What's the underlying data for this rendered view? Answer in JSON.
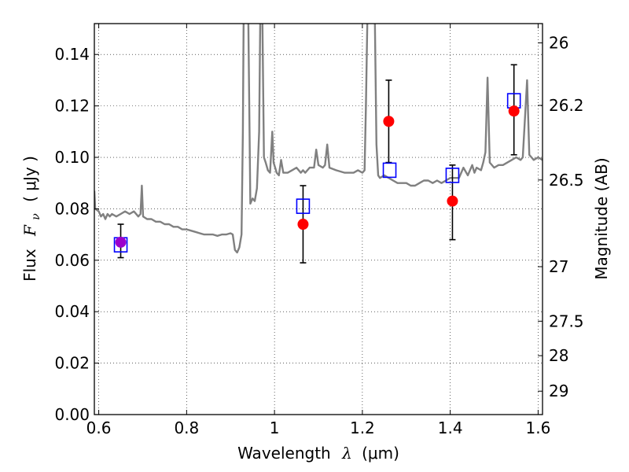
{
  "chart_data": {
    "type": "scatter",
    "title": "",
    "xlabel": "Wavelength",
    "xlabel_symbol": "λ",
    "xlabel_unit": "(μm)",
    "ylabel": "Flux",
    "ylabel_symbol": "F",
    "ylabel_subscript": "ν",
    "ylabel_unit": "( μJy )",
    "y2label": "Magnitude (AB)",
    "xlim": [
      0.59,
      1.61
    ],
    "ylim": [
      0.0,
      0.152
    ],
    "grid": true,
    "legend": "none",
    "x_ticks": [
      0.6,
      0.8,
      1.0,
      1.2,
      1.4,
      1.6
    ],
    "x_tick_labels": [
      "0.6",
      "0.8",
      "1",
      "1.2",
      "1.4",
      "1.6"
    ],
    "y_ticks": [
      0.0,
      0.02,
      0.04,
      0.06,
      0.08,
      0.1,
      0.12,
      0.14
    ],
    "y_tick_labels": [
      "0.00",
      "0.02",
      "0.04",
      "0.06",
      "0.08",
      "0.10",
      "0.12",
      "0.14"
    ],
    "mag_ticks": [
      {
        "label": "26",
        "flux": 0.1445
      },
      {
        "label": "26.2",
        "flux": 0.1202
      },
      {
        "label": "26.5",
        "flux": 0.0912
      },
      {
        "label": "27",
        "flux": 0.0575
      },
      {
        "label": "27.5",
        "flux": 0.0363
      },
      {
        "label": "28",
        "flux": 0.0229
      },
      {
        "label": "29",
        "flux": 0.0091
      }
    ],
    "series": [
      {
        "kind": "model_spectrum",
        "color": "#808080",
        "points": [
          [
            0.59,
            0.087
          ],
          [
            0.592,
            0.08
          ],
          [
            0.6,
            0.079
          ],
          [
            0.605,
            0.077
          ],
          [
            0.61,
            0.078
          ],
          [
            0.615,
            0.076
          ],
          [
            0.62,
            0.078
          ],
          [
            0.625,
            0.077
          ],
          [
            0.63,
            0.078
          ],
          [
            0.64,
            0.077
          ],
          [
            0.65,
            0.078
          ],
          [
            0.66,
            0.079
          ],
          [
            0.67,
            0.078
          ],
          [
            0.68,
            0.079
          ],
          [
            0.69,
            0.077
          ],
          [
            0.695,
            0.078
          ],
          [
            0.698,
            0.089
          ],
          [
            0.701,
            0.077
          ],
          [
            0.71,
            0.076
          ],
          [
            0.72,
            0.076
          ],
          [
            0.73,
            0.075
          ],
          [
            0.74,
            0.075
          ],
          [
            0.75,
            0.074
          ],
          [
            0.76,
            0.074
          ],
          [
            0.77,
            0.073
          ],
          [
            0.78,
            0.073
          ],
          [
            0.79,
            0.072
          ],
          [
            0.8,
            0.072
          ],
          [
            0.81,
            0.0715
          ],
          [
            0.82,
            0.071
          ],
          [
            0.83,
            0.0705
          ],
          [
            0.84,
            0.07
          ],
          [
            0.85,
            0.07
          ],
          [
            0.86,
            0.07
          ],
          [
            0.87,
            0.0695
          ],
          [
            0.88,
            0.07
          ],
          [
            0.89,
            0.07
          ],
          [
            0.9,
            0.0705
          ],
          [
            0.905,
            0.07
          ],
          [
            0.91,
            0.064
          ],
          [
            0.915,
            0.063
          ],
          [
            0.92,
            0.065
          ],
          [
            0.925,
            0.07
          ],
          [
            0.928,
            0.11
          ],
          [
            0.93,
            0.16
          ],
          [
            0.94,
            0.16
          ],
          [
            0.945,
            0.082
          ],
          [
            0.95,
            0.084
          ],
          [
            0.955,
            0.083
          ],
          [
            0.96,
            0.088
          ],
          [
            0.965,
            0.11
          ],
          [
            0.968,
            0.16
          ],
          [
            0.972,
            0.16
          ],
          [
            0.976,
            0.1
          ],
          [
            0.98,
            0.098
          ],
          [
            0.985,
            0.095
          ],
          [
            0.99,
            0.094
          ],
          [
            0.995,
            0.11
          ],
          [
            0.998,
            0.098
          ],
          [
            1.005,
            0.094
          ],
          [
            1.01,
            0.093
          ],
          [
            1.015,
            0.099
          ],
          [
            1.02,
            0.094
          ],
          [
            1.03,
            0.094
          ],
          [
            1.04,
            0.095
          ],
          [
            1.05,
            0.096
          ],
          [
            1.06,
            0.094
          ],
          [
            1.065,
            0.095
          ],
          [
            1.07,
            0.094
          ],
          [
            1.08,
            0.096
          ],
          [
            1.09,
            0.096
          ],
          [
            1.095,
            0.103
          ],
          [
            1.1,
            0.097
          ],
          [
            1.11,
            0.096
          ],
          [
            1.115,
            0.097
          ],
          [
            1.12,
            0.105
          ],
          [
            1.125,
            0.096
          ],
          [
            1.14,
            0.095
          ],
          [
            1.16,
            0.094
          ],
          [
            1.18,
            0.094
          ],
          [
            1.19,
            0.095
          ],
          [
            1.2,
            0.094
          ],
          [
            1.205,
            0.095
          ],
          [
            1.208,
            0.12
          ],
          [
            1.212,
            0.16
          ],
          [
            1.228,
            0.16
          ],
          [
            1.232,
            0.105
          ],
          [
            1.236,
            0.093
          ],
          [
            1.24,
            0.092
          ],
          [
            1.25,
            0.093
          ],
          [
            1.26,
            0.092
          ],
          [
            1.27,
            0.091
          ],
          [
            1.28,
            0.09
          ],
          [
            1.29,
            0.09
          ],
          [
            1.3,
            0.09
          ],
          [
            1.31,
            0.089
          ],
          [
            1.32,
            0.089
          ],
          [
            1.33,
            0.09
          ],
          [
            1.34,
            0.091
          ],
          [
            1.35,
            0.091
          ],
          [
            1.36,
            0.09
          ],
          [
            1.37,
            0.091
          ],
          [
            1.38,
            0.09
          ],
          [
            1.39,
            0.091
          ],
          [
            1.4,
            0.092
          ],
          [
            1.42,
            0.092
          ],
          [
            1.43,
            0.096
          ],
          [
            1.44,
            0.093
          ],
          [
            1.45,
            0.097
          ],
          [
            1.455,
            0.094
          ],
          [
            1.46,
            0.096
          ],
          [
            1.47,
            0.095
          ],
          [
            1.475,
            0.098
          ],
          [
            1.48,
            0.102
          ],
          [
            1.485,
            0.131
          ],
          [
            1.49,
            0.098
          ],
          [
            1.5,
            0.096
          ],
          [
            1.51,
            0.097
          ],
          [
            1.52,
            0.097
          ],
          [
            1.53,
            0.098
          ],
          [
            1.54,
            0.099
          ],
          [
            1.55,
            0.1
          ],
          [
            1.56,
            0.099
          ],
          [
            1.565,
            0.1
          ],
          [
            1.575,
            0.13
          ],
          [
            1.58,
            0.101
          ],
          [
            1.585,
            0.1
          ],
          [
            1.59,
            0.099
          ],
          [
            1.6,
            0.1
          ],
          [
            1.61,
            0.099
          ]
        ]
      },
      {
        "kind": "model_points",
        "marker": "square",
        "color": "#0000ff",
        "points": [
          [
            0.65,
            0.066
          ],
          [
            1.065,
            0.081
          ],
          [
            1.262,
            0.095
          ],
          [
            1.405,
            0.093
          ],
          [
            1.545,
            0.122
          ]
        ]
      },
      {
        "kind": "observed_points",
        "marker": "circle",
        "color": "#ff0000",
        "points": [
          {
            "x": 0.65,
            "y": 0.067,
            "err_low": 0.061,
            "err_high": 0.074,
            "color": "#9b00cc"
          },
          {
            "x": 1.065,
            "y": 0.074,
            "err_low": 0.059,
            "err_high": 0.089
          },
          {
            "x": 1.26,
            "y": 0.114,
            "err_low": 0.098,
            "err_high": 0.13
          },
          {
            "x": 1.405,
            "y": 0.083,
            "err_low": 0.068,
            "err_high": 0.097
          },
          {
            "x": 1.545,
            "y": 0.118,
            "err_low": 0.101,
            "err_high": 0.136
          }
        ]
      }
    ]
  }
}
